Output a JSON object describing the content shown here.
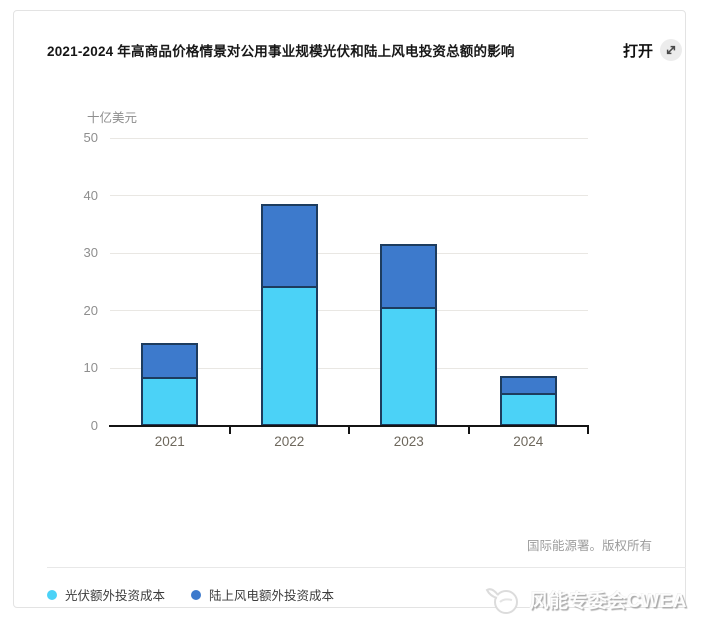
{
  "card": {
    "title": "2021-2024 年高商品价格情景对公用事业规模光伏和陆上风电投资总额的影响",
    "open_label": "打开",
    "open_icon": "expand-diagonal-arrow",
    "source": "国际能源署。版权所有"
  },
  "watermark": {
    "text": "风能专委会CWEA",
    "logo_icon": "cwea-logo"
  },
  "chart_data": {
    "type": "bar",
    "stacked": true,
    "title": "2021-2024 年高商品价格情景对公用事业规模光伏和陆上风电投资总额的影响",
    "unit_label": "十亿美元",
    "xlabel": "",
    "ylabel": "十亿美元",
    "categories": [
      "2021",
      "2022",
      "2023",
      "2024"
    ],
    "series": [
      {
        "name": "光伏额外投资成本",
        "color": "#4bd2f7",
        "values": [
          8.5,
          24.3,
          20.6,
          5.7
        ]
      },
      {
        "name": "陆上风电额外投资成本",
        "color": "#3d7acc",
        "values": [
          6.2,
          14.6,
          11.3,
          3.3
        ]
      }
    ],
    "totals": [
      14.7,
      38.9,
      31.9,
      9.0
    ],
    "ylim": [
      0,
      50
    ],
    "ytick_interval": 10,
    "yticks": [
      0,
      10,
      20,
      30,
      40,
      50
    ],
    "grid": "horizontal",
    "legend_position": "bottom",
    "bar_border_color": "#1d3c5e",
    "axis_color": "#141414",
    "gridline_color": "#e9e7e3"
  }
}
